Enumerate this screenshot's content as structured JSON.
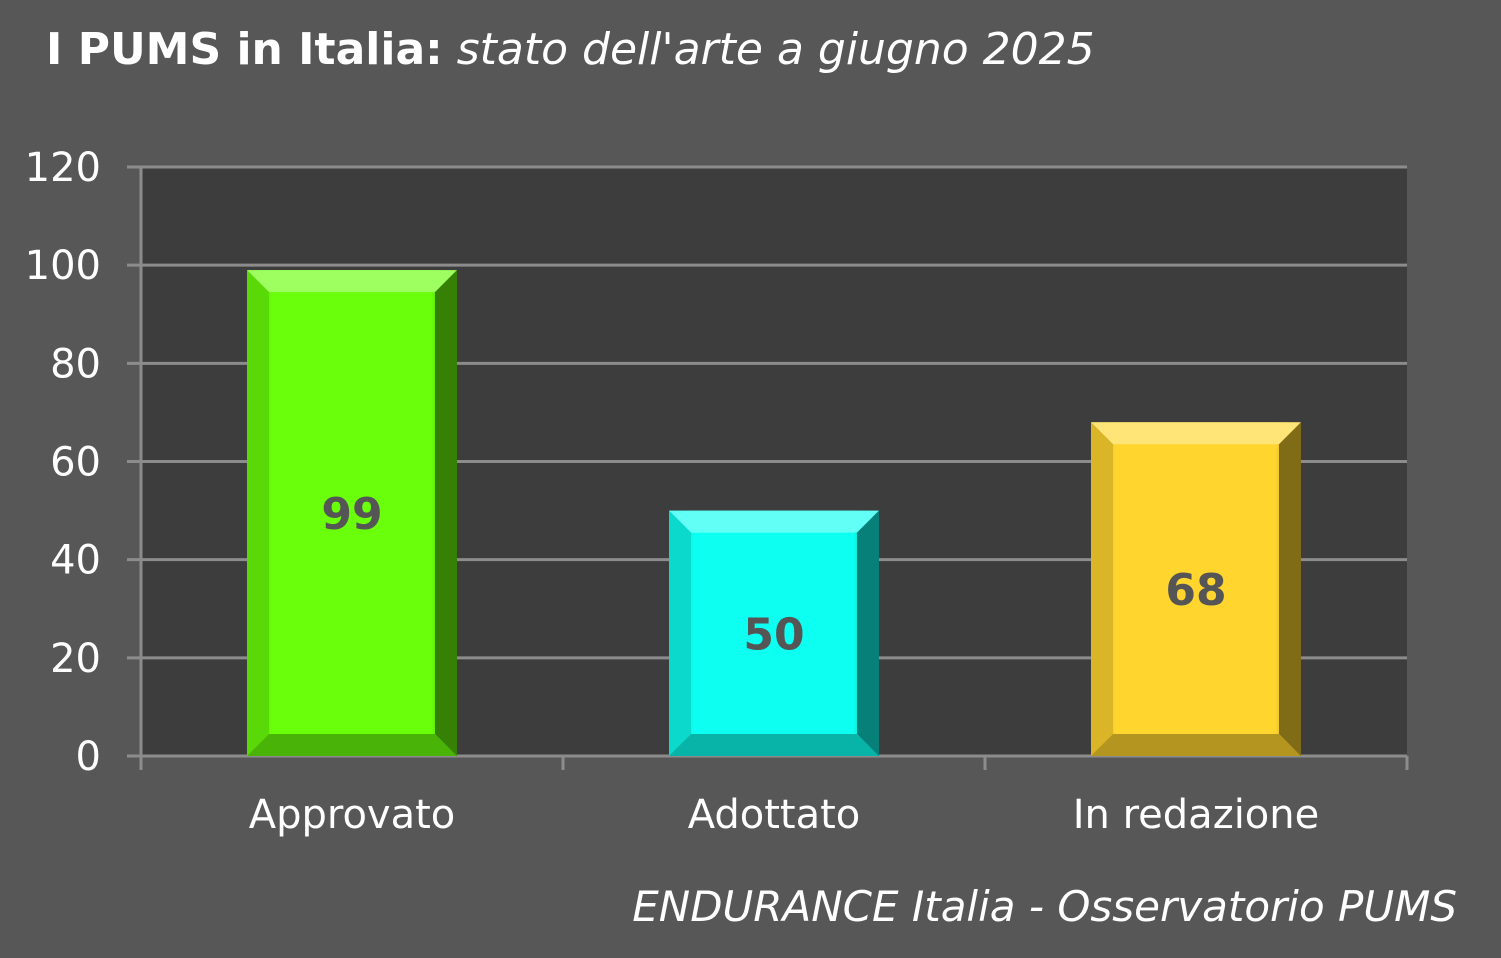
{
  "title": {
    "bold": "I PUMS in Italia:",
    "italic": "stato dell'arte a giugno 2025"
  },
  "source": "ENDURANCE Italia - Osservatorio PUMS",
  "colors": {
    "background": "#575757",
    "plot_area": "#3d3d3d",
    "gridline": "#8c8c8c"
  },
  "chart_data": {
    "type": "bar",
    "categories": [
      "Approvato",
      "Adottato",
      "In redazione"
    ],
    "values": [
      99,
      50,
      68
    ],
    "bar_colors": [
      "#6aff0a",
      "#0cfff0",
      "#ffd52e"
    ],
    "ylim": [
      0,
      120
    ],
    "yticks": [
      "0",
      "20",
      "40",
      "60",
      "80",
      "100",
      "120"
    ],
    "data_labels": [
      "99",
      "50",
      "68"
    ],
    "grid": true,
    "legend": "none"
  }
}
